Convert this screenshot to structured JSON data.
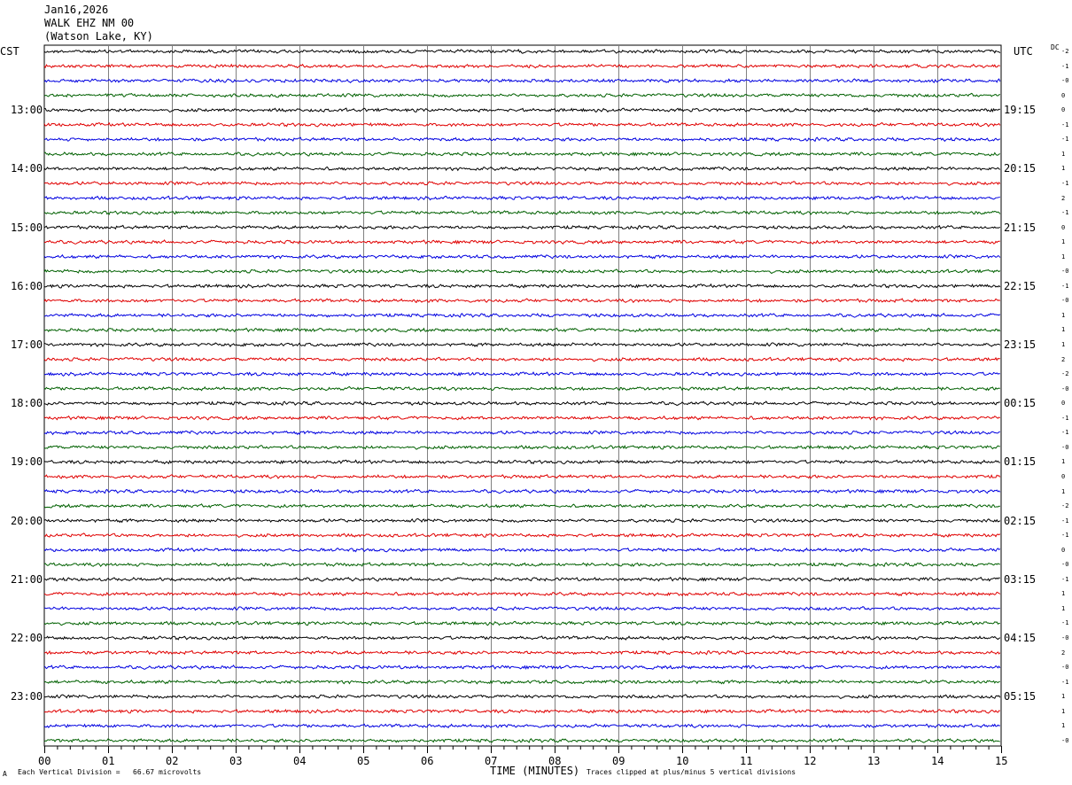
{
  "header": {
    "date": "Jan16,2026",
    "station": "WALK EHZ NM 00",
    "location": "(Watson Lake, KY)"
  },
  "left_timezone": "CST",
  "right_timezone": "UTC",
  "dc_label": "DC",
  "footer": {
    "mark": "A",
    "division_text": "Each Vertical Division =   66.67 microvolts",
    "clip_text": "Traces clipped at plus/minus 5 vertical divisions"
  },
  "colors": {
    "trace_cycle": [
      "#000000",
      "#e00000",
      "#0000e0",
      "#006000"
    ],
    "grid": "#808080"
  },
  "chart_data": {
    "type": "line",
    "title": "",
    "xlabel": "TIME (MINUTES)",
    "ylabel": "",
    "xlim": [
      0,
      15
    ],
    "x_ticks": [
      "00",
      "01",
      "02",
      "03",
      "04",
      "05",
      "06",
      "07",
      "08",
      "09",
      "10",
      "11",
      "12",
      "13",
      "14",
      "15"
    ],
    "rows_per_hour": 4,
    "trace_count": 48,
    "left_hour_labels": [
      "13:00",
      "14:00",
      "15:00",
      "16:00",
      "17:00",
      "18:00",
      "19:00",
      "20:00",
      "21:00",
      "22:00",
      "23:00"
    ],
    "right_hour_labels": [
      "19:15",
      "20:15",
      "21:15",
      "22:15",
      "23:15",
      "00:15",
      "01:15",
      "02:15",
      "03:15",
      "04:15",
      "05:15"
    ],
    "dc_offsets": [
      "-2",
      "-1",
      "-0",
      "0",
      "0",
      "-1",
      "-1",
      "1",
      "1",
      "-1",
      "2",
      "-1",
      "0",
      "1",
      "1",
      "-0",
      "-1",
      "-0",
      "1",
      "1",
      "1",
      "2",
      "-2",
      "-0",
      "0",
      "-1",
      "-1",
      "-0",
      "1",
      "0",
      "1",
      "-2",
      "-1",
      "-1",
      "0",
      "-0",
      "-1",
      "1",
      "1",
      "-1",
      "-0",
      "2",
      "-0",
      "-1",
      "1",
      "1",
      "1",
      "-0"
    ]
  }
}
